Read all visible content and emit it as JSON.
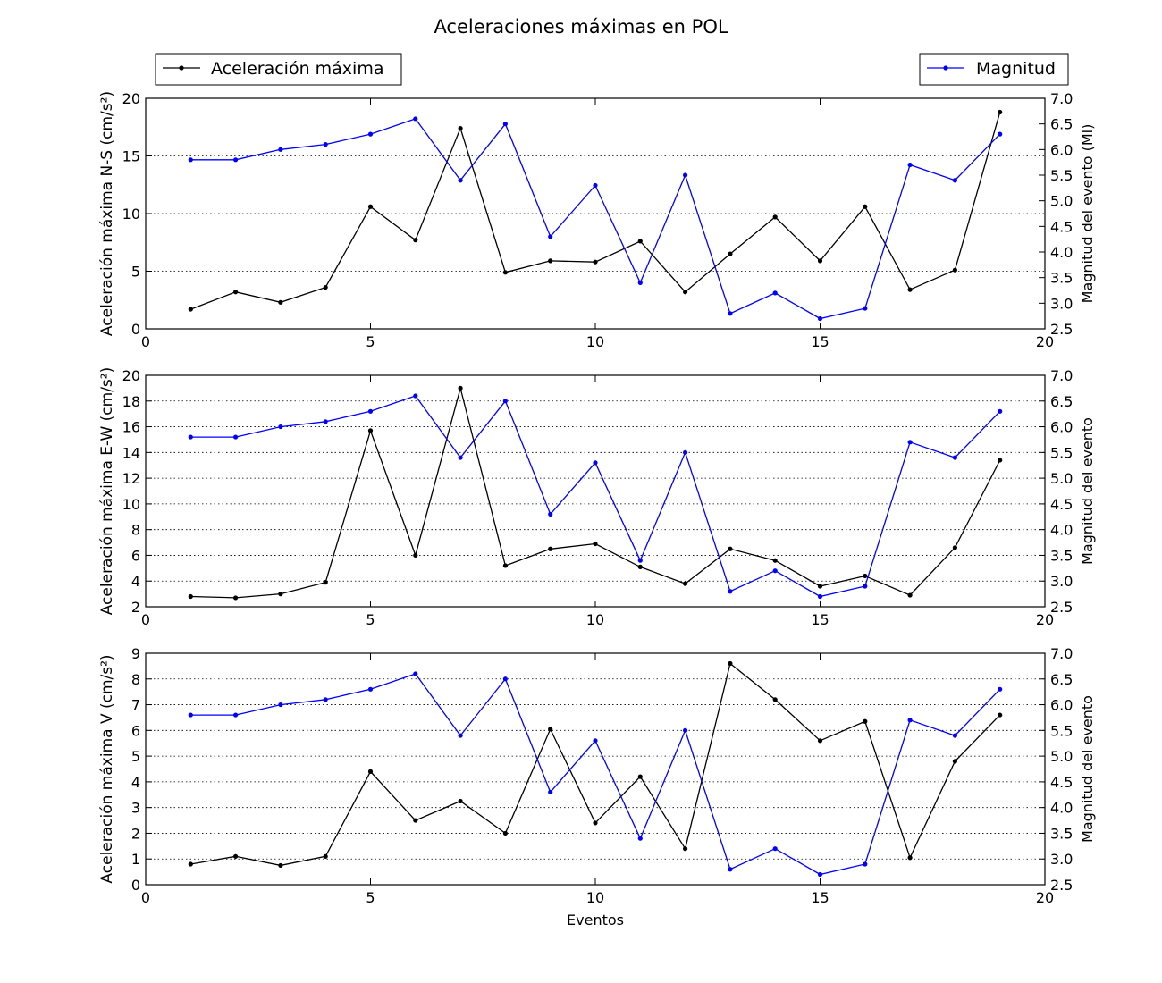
{
  "title": "Aceleraciones máximas en POL",
  "legend": {
    "left_label": "Aceleración máxima",
    "right_label": "Magnitud",
    "left_placement": "top-left",
    "right_placement": "top-right"
  },
  "colors": {
    "acceleration": "#000000",
    "magnitude": "#0000ff",
    "grid": "#000000"
  },
  "chart_data": [
    {
      "type": "line",
      "ylabel": "Aceleración máxima N-S (cm/s²)",
      "y2label": "Magnitud del evento (Ml)",
      "xlabel": "",
      "xlim": [
        0,
        20
      ],
      "xticks": [
        0,
        5,
        10,
        15,
        20
      ],
      "ylim": [
        0,
        20
      ],
      "yticks": [
        0,
        5,
        10,
        15,
        20
      ],
      "y2lim": [
        2.5,
        7.0
      ],
      "y2ticks": [
        "2.5",
        "3.0",
        "3.5",
        "4.0",
        "4.5",
        "5.0",
        "5.5",
        "6.0",
        "6.5",
        "7.0"
      ],
      "grid": "y-dotted",
      "series": [
        {
          "name": "Aceleración máxima",
          "axis": "left",
          "x": [
            1,
            2,
            3,
            4,
            5,
            6,
            7,
            8,
            9,
            10,
            11,
            12,
            13,
            14,
            15,
            16,
            17,
            18,
            19
          ],
          "values": [
            1.7,
            3.2,
            2.3,
            3.6,
            10.6,
            7.7,
            17.4,
            4.9,
            5.9,
            5.8,
            7.6,
            3.2,
            6.5,
            9.7,
            5.9,
            10.6,
            3.4,
            5.1,
            18.8
          ]
        },
        {
          "name": "Magnitud",
          "axis": "right",
          "x": [
            1,
            2,
            3,
            4,
            5,
            6,
            7,
            8,
            9,
            10,
            11,
            12,
            13,
            14,
            15,
            16,
            17,
            18,
            19
          ],
          "values": [
            5.8,
            5.8,
            6.0,
            6.1,
            6.3,
            6.6,
            5.4,
            6.5,
            4.3,
            5.3,
            3.4,
            5.5,
            2.8,
            3.2,
            2.7,
            2.9,
            5.7,
            5.4,
            6.3
          ]
        }
      ]
    },
    {
      "type": "line",
      "ylabel": "Aceleración máxima E-W (cm/s²)",
      "y2label": "Magnitud del evento",
      "xlabel": "",
      "xlim": [
        0,
        20
      ],
      "xticks": [
        0,
        5,
        10,
        15,
        20
      ],
      "ylim": [
        2,
        20
      ],
      "yticks": [
        2,
        4,
        6,
        8,
        10,
        12,
        14,
        16,
        18,
        20
      ],
      "y2lim": [
        2.5,
        7.0
      ],
      "y2ticks": [
        "2.5",
        "3.0",
        "3.5",
        "4.0",
        "4.5",
        "5.0",
        "5.5",
        "6.0",
        "6.5",
        "7.0"
      ],
      "grid": "y-dotted",
      "series": [
        {
          "name": "Aceleración máxima",
          "axis": "left",
          "x": [
            1,
            2,
            3,
            4,
            5,
            6,
            7,
            8,
            9,
            10,
            11,
            12,
            13,
            14,
            15,
            16,
            17,
            18,
            19
          ],
          "values": [
            2.8,
            2.7,
            3.0,
            3.9,
            15.7,
            6.0,
            19.0,
            5.2,
            6.5,
            6.9,
            5.1,
            3.8,
            6.5,
            5.6,
            3.6,
            4.4,
            2.9,
            6.6,
            13.4
          ]
        },
        {
          "name": "Magnitud",
          "axis": "right",
          "x": [
            1,
            2,
            3,
            4,
            5,
            6,
            7,
            8,
            9,
            10,
            11,
            12,
            13,
            14,
            15,
            16,
            17,
            18,
            19
          ],
          "values": [
            5.8,
            5.8,
            6.0,
            6.1,
            6.3,
            6.6,
            5.4,
            6.5,
            4.3,
            5.3,
            3.4,
            5.5,
            2.8,
            3.2,
            2.7,
            2.9,
            5.7,
            5.4,
            6.3
          ]
        }
      ]
    },
    {
      "type": "line",
      "ylabel": "Aceleración máxima V (cm/s²)",
      "y2label": "Magnitud del evento",
      "xlabel": "Eventos",
      "xlim": [
        0,
        20
      ],
      "xticks": [
        0,
        5,
        10,
        15,
        20
      ],
      "ylim": [
        0,
        9
      ],
      "yticks": [
        0,
        1,
        2,
        3,
        4,
        5,
        6,
        7,
        8,
        9
      ],
      "y2lim": [
        2.5,
        7.0
      ],
      "y2ticks": [
        "2.5",
        "3.0",
        "3.5",
        "4.0",
        "4.5",
        "5.0",
        "5.5",
        "6.0",
        "6.5",
        "7.0"
      ],
      "grid": "y-dotted",
      "series": [
        {
          "name": "Aceleración máxima",
          "axis": "left",
          "x": [
            1,
            2,
            3,
            4,
            5,
            6,
            7,
            8,
            9,
            10,
            11,
            12,
            13,
            14,
            15,
            16,
            17,
            18,
            19
          ],
          "values": [
            0.8,
            1.1,
            0.75,
            1.1,
            4.4,
            2.5,
            3.25,
            2.0,
            6.05,
            2.4,
            4.2,
            1.4,
            8.6,
            7.2,
            5.6,
            6.35,
            1.05,
            4.8,
            6.6
          ]
        },
        {
          "name": "Magnitud",
          "axis": "right",
          "x": [
            1,
            2,
            3,
            4,
            5,
            6,
            7,
            8,
            9,
            10,
            11,
            12,
            13,
            14,
            15,
            16,
            17,
            18,
            19
          ],
          "values": [
            5.8,
            5.8,
            6.0,
            6.1,
            6.3,
            6.6,
            5.4,
            6.5,
            4.3,
            5.3,
            3.4,
            5.5,
            2.8,
            3.2,
            2.7,
            2.9,
            5.7,
            5.4,
            6.3
          ]
        }
      ]
    }
  ]
}
